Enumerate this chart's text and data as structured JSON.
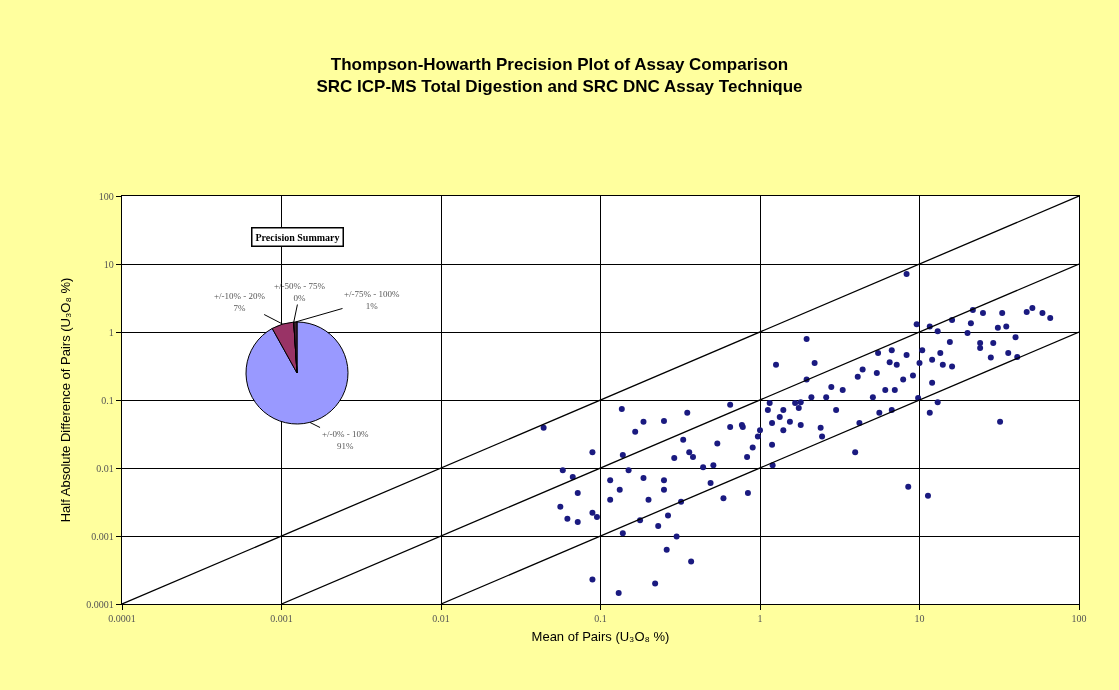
{
  "chart_data": [
    {
      "type": "scatter",
      "title": "Thompson-Howarth Precision Plot of Assay Comparison",
      "subtitle": "SRC ICP-MS Total Digestion and SRC DNC Assay Technique",
      "xlabel": "Mean of Pairs (U₃O₈ %)",
      "ylabel": "Half Absolute Difference of Pairs (U₃O₈ %)",
      "log": "xy",
      "grid": true,
      "xlim": [
        0.0001,
        100
      ],
      "ylim": [
        0.0001,
        100
      ],
      "xticks": [
        0.0001,
        0.001,
        0.01,
        0.1,
        1,
        10,
        100
      ],
      "yticks": [
        0.0001,
        0.001,
        0.01,
        0.1,
        1,
        10,
        100
      ],
      "series": [
        {
          "type": "scatter",
          "marker": "circle",
          "color": "#1a1a80",
          "x": [
            0.044,
            0.136,
            0.186,
            0.25,
            0.165,
            0.35,
            0.65,
            0.089,
            0.058,
            0.067,
            0.072,
            0.056,
            0.062,
            0.072,
            0.089,
            0.095,
            0.115,
            0.115,
            0.132,
            0.138,
            0.15,
            0.186,
            0.2,
            0.25,
            0.25,
            0.177,
            0.23,
            0.265,
            0.26,
            0.37,
            0.22,
            0.13,
            0.089,
            0.29,
            0.36,
            0.44,
            0.51,
            0.54,
            0.65,
            0.78,
            0.83,
            0.9,
            0.49,
            0.59,
            0.84,
            0.32,
            0.138,
            0.3,
            0.33,
            0.38,
            8.3,
            1.96,
            1.26,
            2.2,
            9.6,
            11.6,
            13,
            16,
            21.6,
            25,
            33,
            47,
            51,
            59,
            66,
            21,
            20,
            31,
            35,
            40,
            15.5,
            24,
            29,
            24,
            28,
            36,
            41,
            13.5,
            12,
            14,
            16,
            12,
            11.6,
            32,
            10.4,
            10,
            8.3,
            6.5,
            7.2,
            5.5,
            6.7,
            9.1,
            7.9,
            7.0,
            6.1,
            5.4,
            5.1,
            4.1,
            4.4,
            3.3,
            2.8,
            2.6,
            2.1,
            1.96,
            1.8,
            1.75,
            1.66,
            1.4,
            1.33,
            1.15,
            1.12,
            1.19,
            1.4,
            1.8,
            1.54,
            2.4,
            2.45,
            3.0,
            4.2,
            5.6,
            6.7,
            9.8,
            13,
            3.95,
            8.5,
            1.0,
            0.97,
            1.19,
            0.77,
            1.2,
            11.3
          ],
          "values": [
            0.039,
            0.074,
            0.048,
            0.049,
            0.034,
            0.065,
            0.085,
            0.017,
            0.0093,
            0.0074,
            0.0043,
            0.0027,
            0.0018,
            0.0016,
            0.0022,
            0.0019,
            0.0034,
            0.0066,
            0.0048,
            0.0155,
            0.0093,
            0.0071,
            0.0034,
            0.0066,
            0.0048,
            0.0017,
            0.0014,
            0.002,
            0.00063,
            0.00042,
            0.0002,
            0.000145,
            0.00023,
            0.014,
            0.017,
            0.0103,
            0.011,
            0.023,
            0.04,
            0.04,
            0.0145,
            0.02,
            0.006,
            0.0036,
            0.0043,
            0.0032,
            0.0011,
            0.00098,
            0.026,
            0.0145,
            7.1,
            0.79,
            0.33,
            0.35,
            1.3,
            1.2,
            1.03,
            1.5,
            2.1,
            1.9,
            1.9,
            1.97,
            2.25,
            1.9,
            1.6,
            1.35,
            0.97,
            1.15,
            1.2,
            0.84,
            0.71,
            0.69,
            0.69,
            0.58,
            0.42,
            0.49,
            0.43,
            0.49,
            0.39,
            0.33,
            0.31,
            0.18,
            0.065,
            0.048,
            0.54,
            0.35,
            0.46,
            0.36,
            0.33,
            0.49,
            0.54,
            0.23,
            0.2,
            0.14,
            0.14,
            0.25,
            0.11,
            0.22,
            0.28,
            0.14,
            0.155,
            0.11,
            0.11,
            0.2,
            0.093,
            0.076,
            0.09,
            0.071,
            0.056,
            0.09,
            0.071,
            0.046,
            0.036,
            0.043,
            0.048,
            0.039,
            0.029,
            0.071,
            0.046,
            0.065,
            0.071,
            0.107,
            0.093,
            0.017,
            0.0053,
            0.036,
            0.029,
            0.022,
            0.043,
            0.011,
            0.0039
          ]
        },
        {
          "type": "line",
          "color": "#000000",
          "x": [
            0.0001,
            100
          ],
          "values": [
            0.0001,
            100
          ]
        },
        {
          "type": "line",
          "color": "#000000",
          "x": [
            0.001,
            100
          ],
          "values": [
            0.0001,
            10
          ]
        },
        {
          "type": "line",
          "color": "#000000",
          "x": [
            0.01,
            100
          ],
          "values": [
            0.0001,
            1
          ]
        }
      ]
    },
    {
      "type": "pie",
      "title": "Precision Summary",
      "categories": [
        "+/-0% - 10%",
        "+/-10% - 20%",
        "+/-50% - 75%",
        "+/-75% - 100%"
      ],
      "values": [
        91,
        7,
        0,
        1
      ],
      "value_labels": [
        "91%",
        "7%",
        "0%",
        "1%"
      ],
      "colors": [
        "#9999ff",
        "#993366",
        "#ffffcc",
        "#402030"
      ]
    }
  ]
}
